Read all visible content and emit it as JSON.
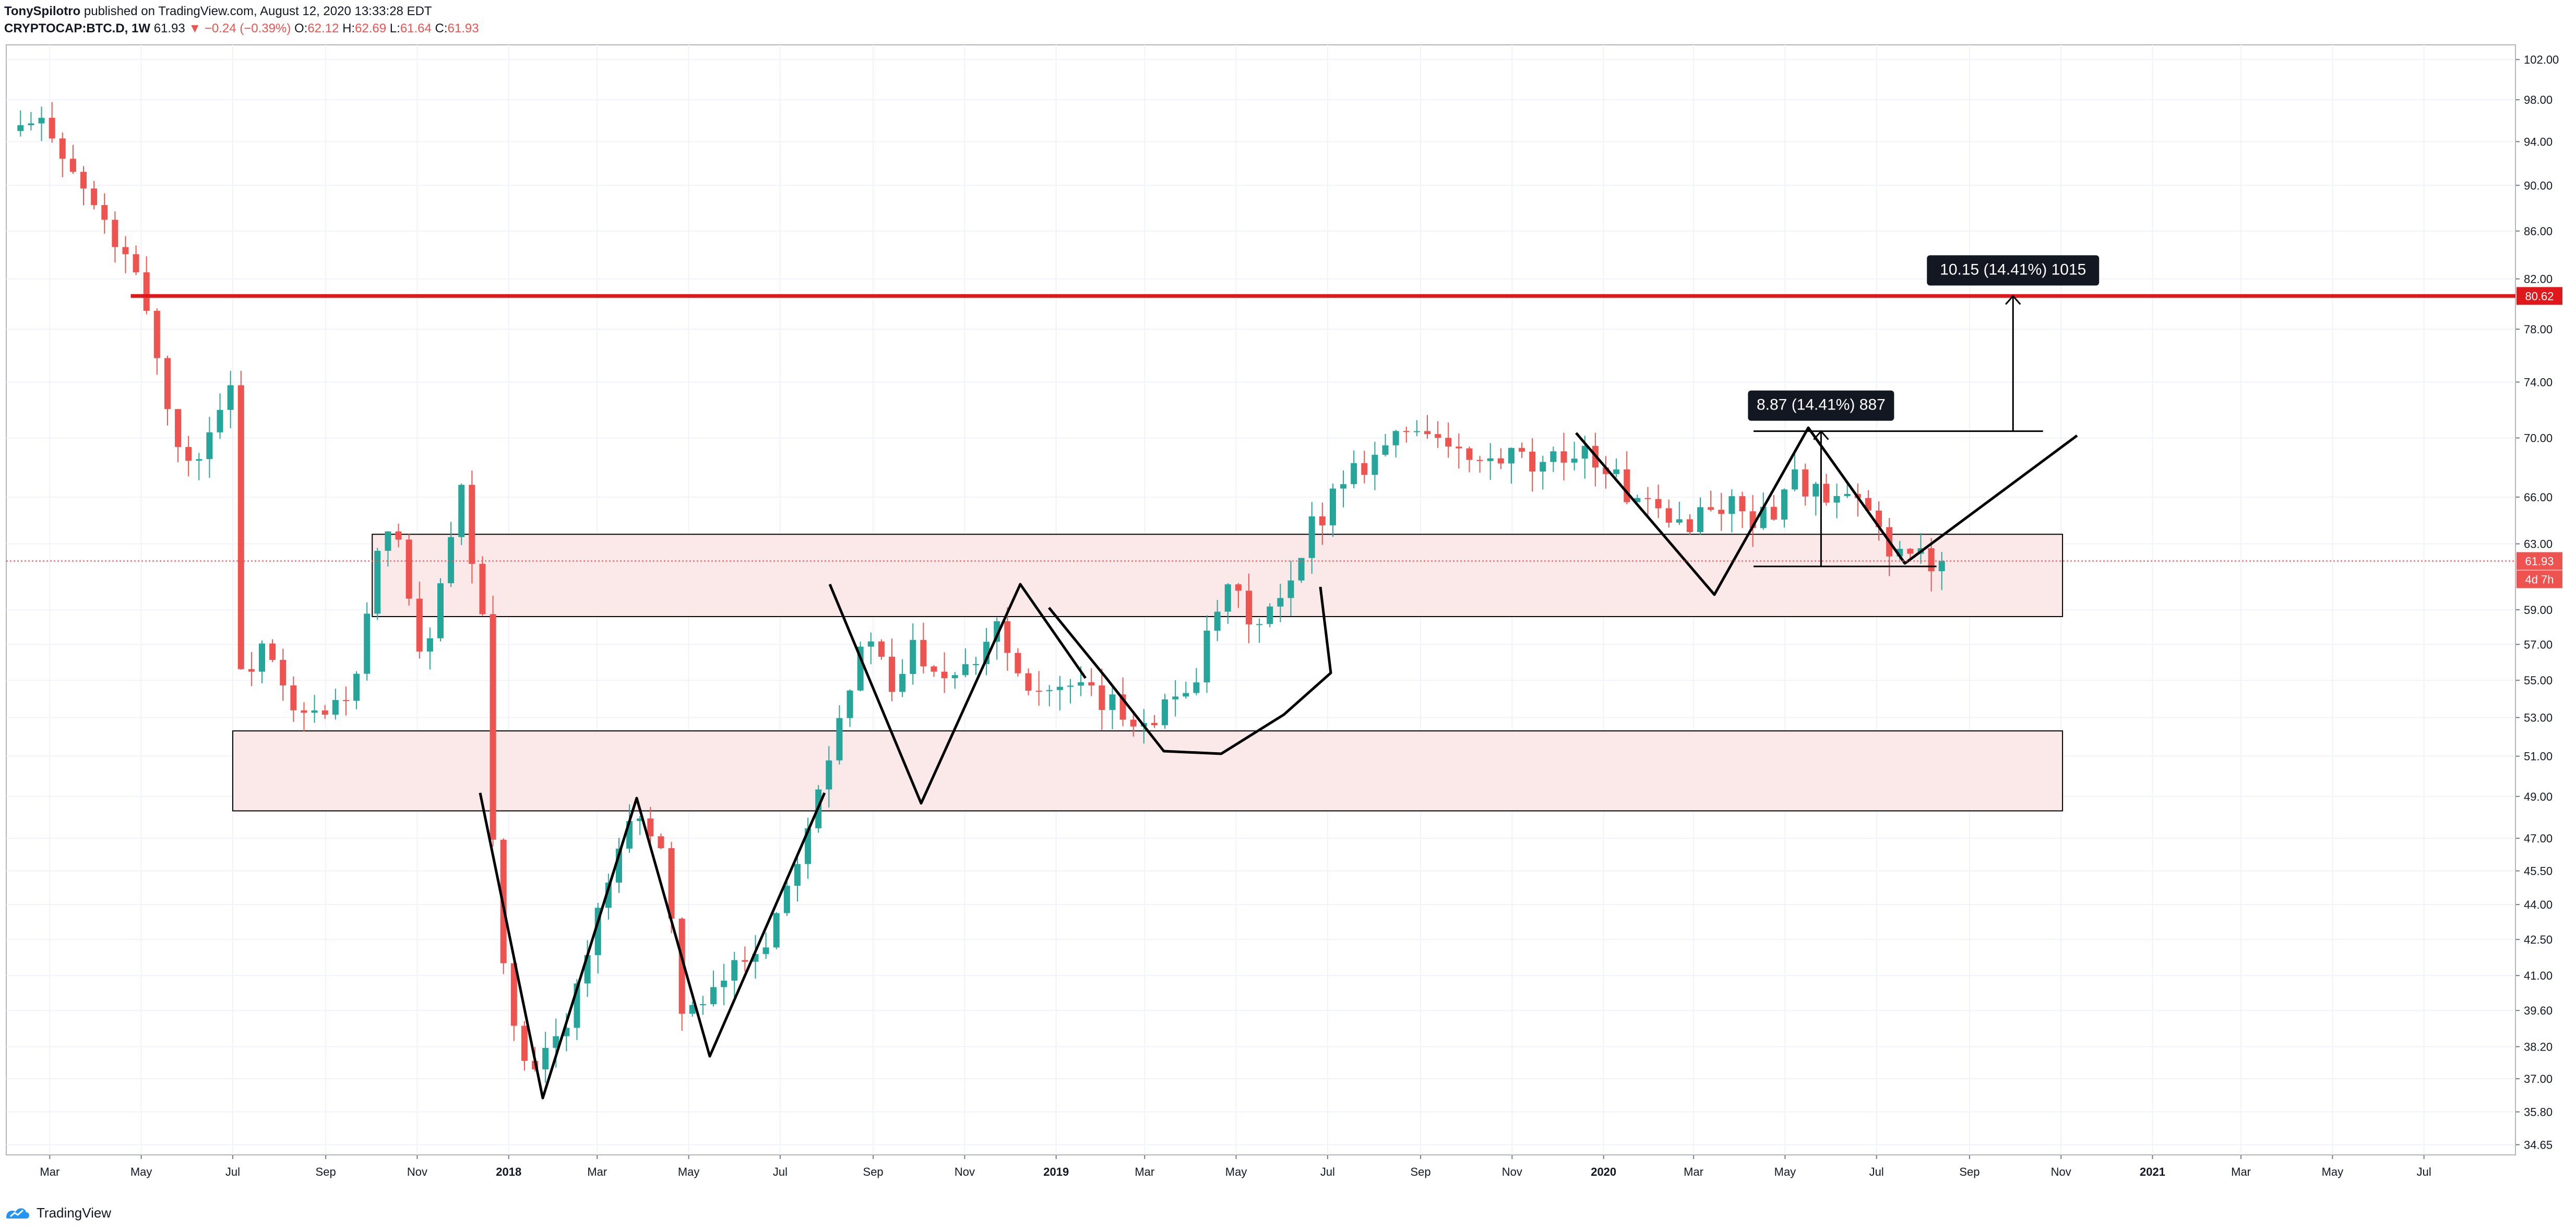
{
  "header": {
    "author": "TonySpilotro",
    "published": "published on TradingView.com, August 12, 2020 13:33:28 EDT",
    "symbol": "CRYPTOCAP:BTC.D, 1W",
    "last": "61.93",
    "change": "−0.24 (−0.39%)",
    "o_label": "O:",
    "o_value": "62.12",
    "h_label": "H:",
    "h_value": "62.69",
    "l_label": "L:",
    "l_value": "61.64",
    "c_label": "C:",
    "c_value": "61.93"
  },
  "footer": {
    "brand": "TradingView"
  },
  "colors": {
    "bull": "#26a69a",
    "bear": "#ef5350",
    "resistance": "#e0181b",
    "zone_fill": "#fbe9ea",
    "grid": "#f0f3fa",
    "pattern": "#000000"
  },
  "chart_data": {
    "type": "candlestick",
    "y_axis_ticks": [
      102.0,
      98.0,
      94.0,
      90.0,
      86.0,
      82.0,
      78.0,
      74.0,
      70.0,
      66.0,
      63.0,
      59.0,
      57.0,
      55.0,
      53.0,
      51.0,
      49.0,
      47.0,
      45.5,
      44.0,
      42.5,
      41.0,
      39.6,
      38.2,
      37.0,
      35.8,
      34.65
    ],
    "y_tick_labels": [
      "102.00",
      "98.00",
      "94.00",
      "90.00",
      "86.00",
      "82.00",
      "78.00",
      "74.00",
      "70.00",
      "66.00",
      "63.00",
      "59.00",
      "57.00",
      "55.00",
      "53.00",
      "51.00",
      "49.00",
      "47.00",
      "45.50",
      "44.00",
      "42.50",
      "41.00",
      "39.60",
      "38.20",
      "37.00",
      "35.80",
      "34.65"
    ],
    "x_axis_labels": [
      "Mar",
      "May",
      "Jul",
      "Sep",
      "Nov",
      "2018",
      "Mar",
      "May",
      "Jul",
      "Sep",
      "Nov",
      "2019",
      "Mar",
      "May",
      "Jul",
      "Sep",
      "Nov",
      "2020",
      "Mar",
      "May",
      "Jul",
      "Sep",
      "Nov",
      "2021",
      "Mar",
      "May",
      "Jul"
    ],
    "x_axis_dates": [
      "2017-03-01",
      "2017-05-01",
      "2017-07-01",
      "2017-09-01",
      "2017-11-01",
      "2018-01-01",
      "2018-03-01",
      "2018-05-01",
      "2018-07-01",
      "2018-09-01",
      "2018-11-01",
      "2019-01-01",
      "2019-03-01",
      "2019-05-01",
      "2019-07-01",
      "2019-09-01",
      "2019-11-01",
      "2020-01-01",
      "2020-03-01",
      "2020-05-01",
      "2020-07-01",
      "2020-09-01",
      "2020-11-01",
      "2021-01-01",
      "2021-03-01",
      "2021-05-01",
      "2021-07-01"
    ],
    "x_range": [
      "2017-01-31",
      "2021-08-31"
    ],
    "scale": "logarithmic",
    "price_path": [
      {
        "date": "2017-02-06",
        "value": 95.0
      },
      {
        "date": "2017-03-06",
        "value": 95.5
      },
      {
        "date": "2017-03-20",
        "value": 91.0
      },
      {
        "date": "2017-04-03",
        "value": 88.0
      },
      {
        "date": "2017-04-17",
        "value": 85.0
      },
      {
        "date": "2017-05-08",
        "value": 80.0
      },
      {
        "date": "2017-05-22",
        "value": 72.0
      },
      {
        "date": "2017-06-05",
        "value": 68.0
      },
      {
        "date": "2017-06-26",
        "value": 72.0
      },
      {
        "date": "2017-07-03",
        "value": 74.5
      },
      {
        "date": "2017-07-10",
        "value": 55.0
      },
      {
        "date": "2017-07-24",
        "value": 57.0
      },
      {
        "date": "2017-08-14",
        "value": 53.0
      },
      {
        "date": "2017-09-04",
        "value": 53.0
      },
      {
        "date": "2017-09-25",
        "value": 55.0
      },
      {
        "date": "2017-10-09",
        "value": 62.0
      },
      {
        "date": "2017-10-23",
        "value": 64.0
      },
      {
        "date": "2017-11-06",
        "value": 56.0
      },
      {
        "date": "2017-11-20",
        "value": 60.0
      },
      {
        "date": "2017-12-04",
        "value": 66.0
      },
      {
        "date": "2017-12-18",
        "value": 58.0
      },
      {
        "date": "2017-12-25",
        "value": 47.0
      },
      {
        "date": "2018-01-01",
        "value": 42.0
      },
      {
        "date": "2018-01-08",
        "value": 38.5
      },
      {
        "date": "2018-01-22",
        "value": 37.0
      },
      {
        "date": "2018-02-05",
        "value": 38.5
      },
      {
        "date": "2018-02-19",
        "value": 40.5
      },
      {
        "date": "2018-03-05",
        "value": 43.5
      },
      {
        "date": "2018-03-19",
        "value": 46.0
      },
      {
        "date": "2018-04-02",
        "value": 48.5
      },
      {
        "date": "2018-04-16",
        "value": 46.0
      },
      {
        "date": "2018-04-30",
        "value": 40.0
      },
      {
        "date": "2018-05-14",
        "value": 39.5
      },
      {
        "date": "2018-06-04",
        "value": 41.5
      },
      {
        "date": "2018-06-25",
        "value": 42.5
      },
      {
        "date": "2018-07-09",
        "value": 45.0
      },
      {
        "date": "2018-07-23",
        "value": 48.0
      },
      {
        "date": "2018-08-06",
        "value": 51.5
      },
      {
        "date": "2018-08-20",
        "value": 55.0
      },
      {
        "date": "2018-09-03",
        "value": 57.5
      },
      {
        "date": "2018-09-17",
        "value": 54.0
      },
      {
        "date": "2018-10-01",
        "value": 57.0
      },
      {
        "date": "2018-10-22",
        "value": 55.5
      },
      {
        "date": "2018-11-12",
        "value": 56.5
      },
      {
        "date": "2018-11-26",
        "value": 58.5
      },
      {
        "date": "2018-12-10",
        "value": 55.5
      },
      {
        "date": "2018-12-31",
        "value": 54.5
      },
      {
        "date": "2019-01-28",
        "value": 54.0
      },
      {
        "date": "2019-02-25",
        "value": 53.0
      },
      {
        "date": "2019-03-18",
        "value": 53.5
      },
      {
        "date": "2019-04-08",
        "value": 55.5
      },
      {
        "date": "2019-04-29",
        "value": 60.0
      },
      {
        "date": "2019-05-20",
        "value": 58.0
      },
      {
        "date": "2019-06-10",
        "value": 60.0
      },
      {
        "date": "2019-06-24",
        "value": 64.0
      },
      {
        "date": "2019-07-15",
        "value": 67.5
      },
      {
        "date": "2019-08-05",
        "value": 69.0
      },
      {
        "date": "2019-08-26",
        "value": 70.5
      },
      {
        "date": "2019-09-09",
        "value": 71.0
      },
      {
        "date": "2019-09-23",
        "value": 69.0
      },
      {
        "date": "2019-10-14",
        "value": 68.0
      },
      {
        "date": "2019-11-04",
        "value": 68.5
      },
      {
        "date": "2019-11-25",
        "value": 67.5
      },
      {
        "date": "2019-12-16",
        "value": 69.5
      },
      {
        "date": "2020-01-06",
        "value": 68.0
      },
      {
        "date": "2020-01-27",
        "value": 65.5
      },
      {
        "date": "2020-02-17",
        "value": 64.0
      },
      {
        "date": "2020-03-09",
        "value": 65.0
      },
      {
        "date": "2020-03-30",
        "value": 65.5
      },
      {
        "date": "2020-04-20",
        "value": 64.5
      },
      {
        "date": "2020-05-11",
        "value": 67.5
      },
      {
        "date": "2020-06-01",
        "value": 65.5
      },
      {
        "date": "2020-06-22",
        "value": 65.5
      },
      {
        "date": "2020-07-13",
        "value": 63.0
      },
      {
        "date": "2020-08-03",
        "value": 62.0
      },
      {
        "date": "2020-08-10",
        "value": 61.93
      }
    ],
    "last_price": {
      "value": 61.93,
      "label": "61.93",
      "countdown": "4d 7h"
    },
    "resistance": {
      "value": 80.62,
      "label": "80.62",
      "from": "2017-04-24",
      "to": "2021-08-31"
    },
    "zones": [
      {
        "from": "2017-10-02",
        "to": "2020-11-02",
        "low": 58.6,
        "high": 63.6
      },
      {
        "from": "2017-07-01",
        "to": "2020-11-02",
        "low": 48.3,
        "high": 52.3
      }
    ],
    "measurements": [
      {
        "label": "8.87 (14.41%) 887",
        "date": "2020-05-25",
        "from": 61.6,
        "to": 70.47
      },
      {
        "label": "10.15 (14.41%) 1015",
        "date": "2020-09-30",
        "from": 70.47,
        "to": 80.62
      }
    ]
  }
}
